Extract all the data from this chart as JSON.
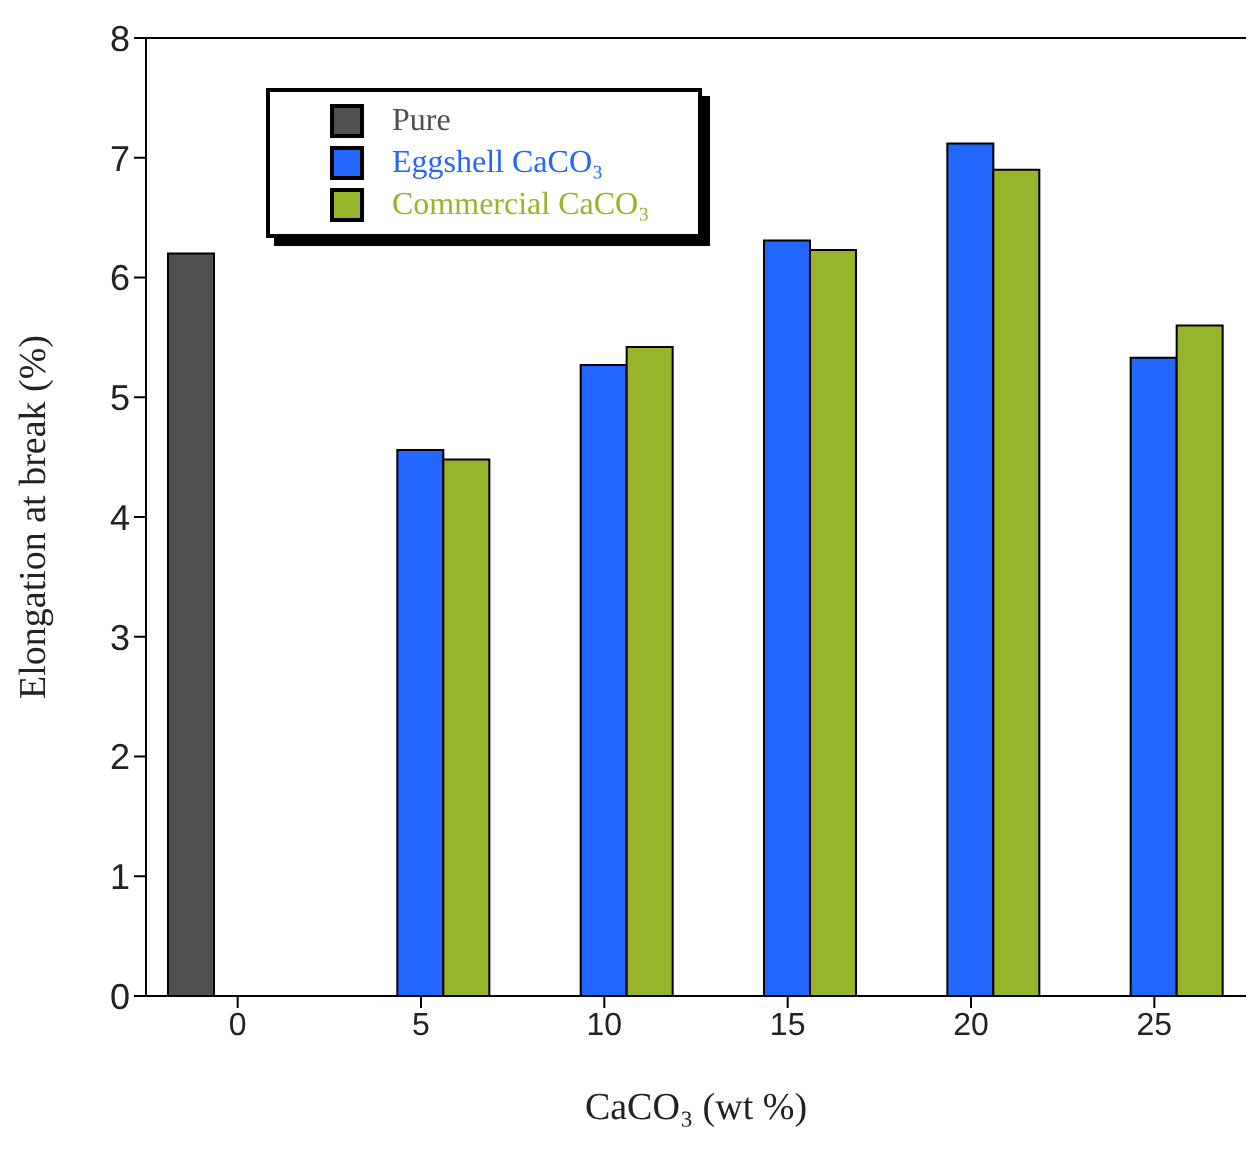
{
  "chart_data": {
    "type": "bar",
    "xlabel": "CaCO₃ (wt %)",
    "ylabel": "Elongation at break (%)",
    "categories": [
      "0",
      "5",
      "10",
      "15",
      "20",
      "25"
    ],
    "series": [
      {
        "name": "Pure",
        "color": "#505050",
        "values": [
          6.2,
          null,
          null,
          null,
          null,
          null
        ]
      },
      {
        "name": "Eggshell CaCO₃",
        "color": "#2266ff",
        "values": [
          null,
          4.56,
          5.27,
          6.31,
          7.12,
          5.33
        ]
      },
      {
        "name": "Commercial CaCO₃",
        "color": "#97b52c",
        "values": [
          null,
          4.48,
          5.42,
          6.23,
          6.9,
          5.6
        ]
      }
    ],
    "ylim": [
      0,
      8
    ],
    "yticks": [
      0,
      1,
      2,
      3,
      4,
      5,
      6,
      7,
      8
    ],
    "grid": false,
    "legend": "top left"
  }
}
